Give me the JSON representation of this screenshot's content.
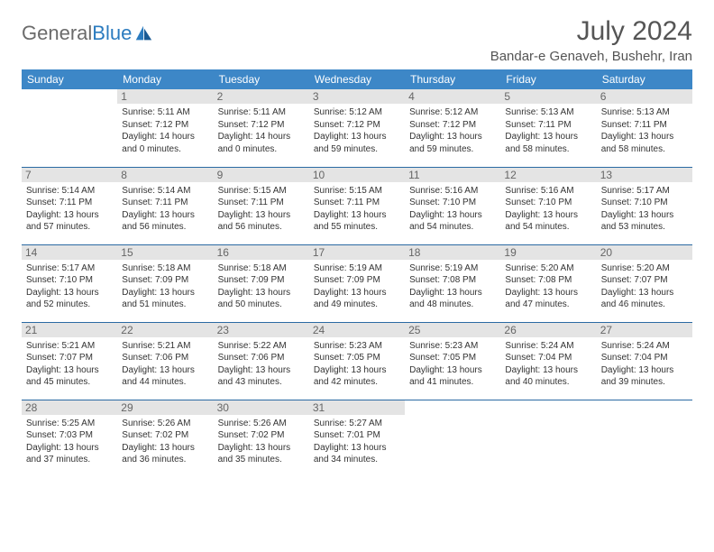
{
  "brand": {
    "part1": "General",
    "part2": "Blue"
  },
  "title": "July 2024",
  "location": "Bandar-e Genaveh, Bushehr, Iran",
  "colors": {
    "header_bg": "#3d87c7",
    "header_text": "#ffffff",
    "daynum_bg": "#e4e4e4",
    "daynum_text": "#666666",
    "row_divider": "#2b6aa3",
    "body_text": "#333333",
    "title_text": "#555555",
    "logo_gray": "#6b6b6b",
    "logo_blue": "#2b7bbf"
  },
  "weekdays": [
    "Sunday",
    "Monday",
    "Tuesday",
    "Wednesday",
    "Thursday",
    "Friday",
    "Saturday"
  ],
  "weeks": [
    [
      {
        "n": "",
        "sr": "",
        "ss": "",
        "dl": ""
      },
      {
        "n": "1",
        "sr": "Sunrise: 5:11 AM",
        "ss": "Sunset: 7:12 PM",
        "dl": "Daylight: 14 hours and 0 minutes."
      },
      {
        "n": "2",
        "sr": "Sunrise: 5:11 AM",
        "ss": "Sunset: 7:12 PM",
        "dl": "Daylight: 14 hours and 0 minutes."
      },
      {
        "n": "3",
        "sr": "Sunrise: 5:12 AM",
        "ss": "Sunset: 7:12 PM",
        "dl": "Daylight: 13 hours and 59 minutes."
      },
      {
        "n": "4",
        "sr": "Sunrise: 5:12 AM",
        "ss": "Sunset: 7:12 PM",
        "dl": "Daylight: 13 hours and 59 minutes."
      },
      {
        "n": "5",
        "sr": "Sunrise: 5:13 AM",
        "ss": "Sunset: 7:11 PM",
        "dl": "Daylight: 13 hours and 58 minutes."
      },
      {
        "n": "6",
        "sr": "Sunrise: 5:13 AM",
        "ss": "Sunset: 7:11 PM",
        "dl": "Daylight: 13 hours and 58 minutes."
      }
    ],
    [
      {
        "n": "7",
        "sr": "Sunrise: 5:14 AM",
        "ss": "Sunset: 7:11 PM",
        "dl": "Daylight: 13 hours and 57 minutes."
      },
      {
        "n": "8",
        "sr": "Sunrise: 5:14 AM",
        "ss": "Sunset: 7:11 PM",
        "dl": "Daylight: 13 hours and 56 minutes."
      },
      {
        "n": "9",
        "sr": "Sunrise: 5:15 AM",
        "ss": "Sunset: 7:11 PM",
        "dl": "Daylight: 13 hours and 56 minutes."
      },
      {
        "n": "10",
        "sr": "Sunrise: 5:15 AM",
        "ss": "Sunset: 7:11 PM",
        "dl": "Daylight: 13 hours and 55 minutes."
      },
      {
        "n": "11",
        "sr": "Sunrise: 5:16 AM",
        "ss": "Sunset: 7:10 PM",
        "dl": "Daylight: 13 hours and 54 minutes."
      },
      {
        "n": "12",
        "sr": "Sunrise: 5:16 AM",
        "ss": "Sunset: 7:10 PM",
        "dl": "Daylight: 13 hours and 54 minutes."
      },
      {
        "n": "13",
        "sr": "Sunrise: 5:17 AM",
        "ss": "Sunset: 7:10 PM",
        "dl": "Daylight: 13 hours and 53 minutes."
      }
    ],
    [
      {
        "n": "14",
        "sr": "Sunrise: 5:17 AM",
        "ss": "Sunset: 7:10 PM",
        "dl": "Daylight: 13 hours and 52 minutes."
      },
      {
        "n": "15",
        "sr": "Sunrise: 5:18 AM",
        "ss": "Sunset: 7:09 PM",
        "dl": "Daylight: 13 hours and 51 minutes."
      },
      {
        "n": "16",
        "sr": "Sunrise: 5:18 AM",
        "ss": "Sunset: 7:09 PM",
        "dl": "Daylight: 13 hours and 50 minutes."
      },
      {
        "n": "17",
        "sr": "Sunrise: 5:19 AM",
        "ss": "Sunset: 7:09 PM",
        "dl": "Daylight: 13 hours and 49 minutes."
      },
      {
        "n": "18",
        "sr": "Sunrise: 5:19 AM",
        "ss": "Sunset: 7:08 PM",
        "dl": "Daylight: 13 hours and 48 minutes."
      },
      {
        "n": "19",
        "sr": "Sunrise: 5:20 AM",
        "ss": "Sunset: 7:08 PM",
        "dl": "Daylight: 13 hours and 47 minutes."
      },
      {
        "n": "20",
        "sr": "Sunrise: 5:20 AM",
        "ss": "Sunset: 7:07 PM",
        "dl": "Daylight: 13 hours and 46 minutes."
      }
    ],
    [
      {
        "n": "21",
        "sr": "Sunrise: 5:21 AM",
        "ss": "Sunset: 7:07 PM",
        "dl": "Daylight: 13 hours and 45 minutes."
      },
      {
        "n": "22",
        "sr": "Sunrise: 5:21 AM",
        "ss": "Sunset: 7:06 PM",
        "dl": "Daylight: 13 hours and 44 minutes."
      },
      {
        "n": "23",
        "sr": "Sunrise: 5:22 AM",
        "ss": "Sunset: 7:06 PM",
        "dl": "Daylight: 13 hours and 43 minutes."
      },
      {
        "n": "24",
        "sr": "Sunrise: 5:23 AM",
        "ss": "Sunset: 7:05 PM",
        "dl": "Daylight: 13 hours and 42 minutes."
      },
      {
        "n": "25",
        "sr": "Sunrise: 5:23 AM",
        "ss": "Sunset: 7:05 PM",
        "dl": "Daylight: 13 hours and 41 minutes."
      },
      {
        "n": "26",
        "sr": "Sunrise: 5:24 AM",
        "ss": "Sunset: 7:04 PM",
        "dl": "Daylight: 13 hours and 40 minutes."
      },
      {
        "n": "27",
        "sr": "Sunrise: 5:24 AM",
        "ss": "Sunset: 7:04 PM",
        "dl": "Daylight: 13 hours and 39 minutes."
      }
    ],
    [
      {
        "n": "28",
        "sr": "Sunrise: 5:25 AM",
        "ss": "Sunset: 7:03 PM",
        "dl": "Daylight: 13 hours and 37 minutes."
      },
      {
        "n": "29",
        "sr": "Sunrise: 5:26 AM",
        "ss": "Sunset: 7:02 PM",
        "dl": "Daylight: 13 hours and 36 minutes."
      },
      {
        "n": "30",
        "sr": "Sunrise: 5:26 AM",
        "ss": "Sunset: 7:02 PM",
        "dl": "Daylight: 13 hours and 35 minutes."
      },
      {
        "n": "31",
        "sr": "Sunrise: 5:27 AM",
        "ss": "Sunset: 7:01 PM",
        "dl": "Daylight: 13 hours and 34 minutes."
      },
      {
        "n": "",
        "sr": "",
        "ss": "",
        "dl": ""
      },
      {
        "n": "",
        "sr": "",
        "ss": "",
        "dl": ""
      },
      {
        "n": "",
        "sr": "",
        "ss": "",
        "dl": ""
      }
    ]
  ]
}
